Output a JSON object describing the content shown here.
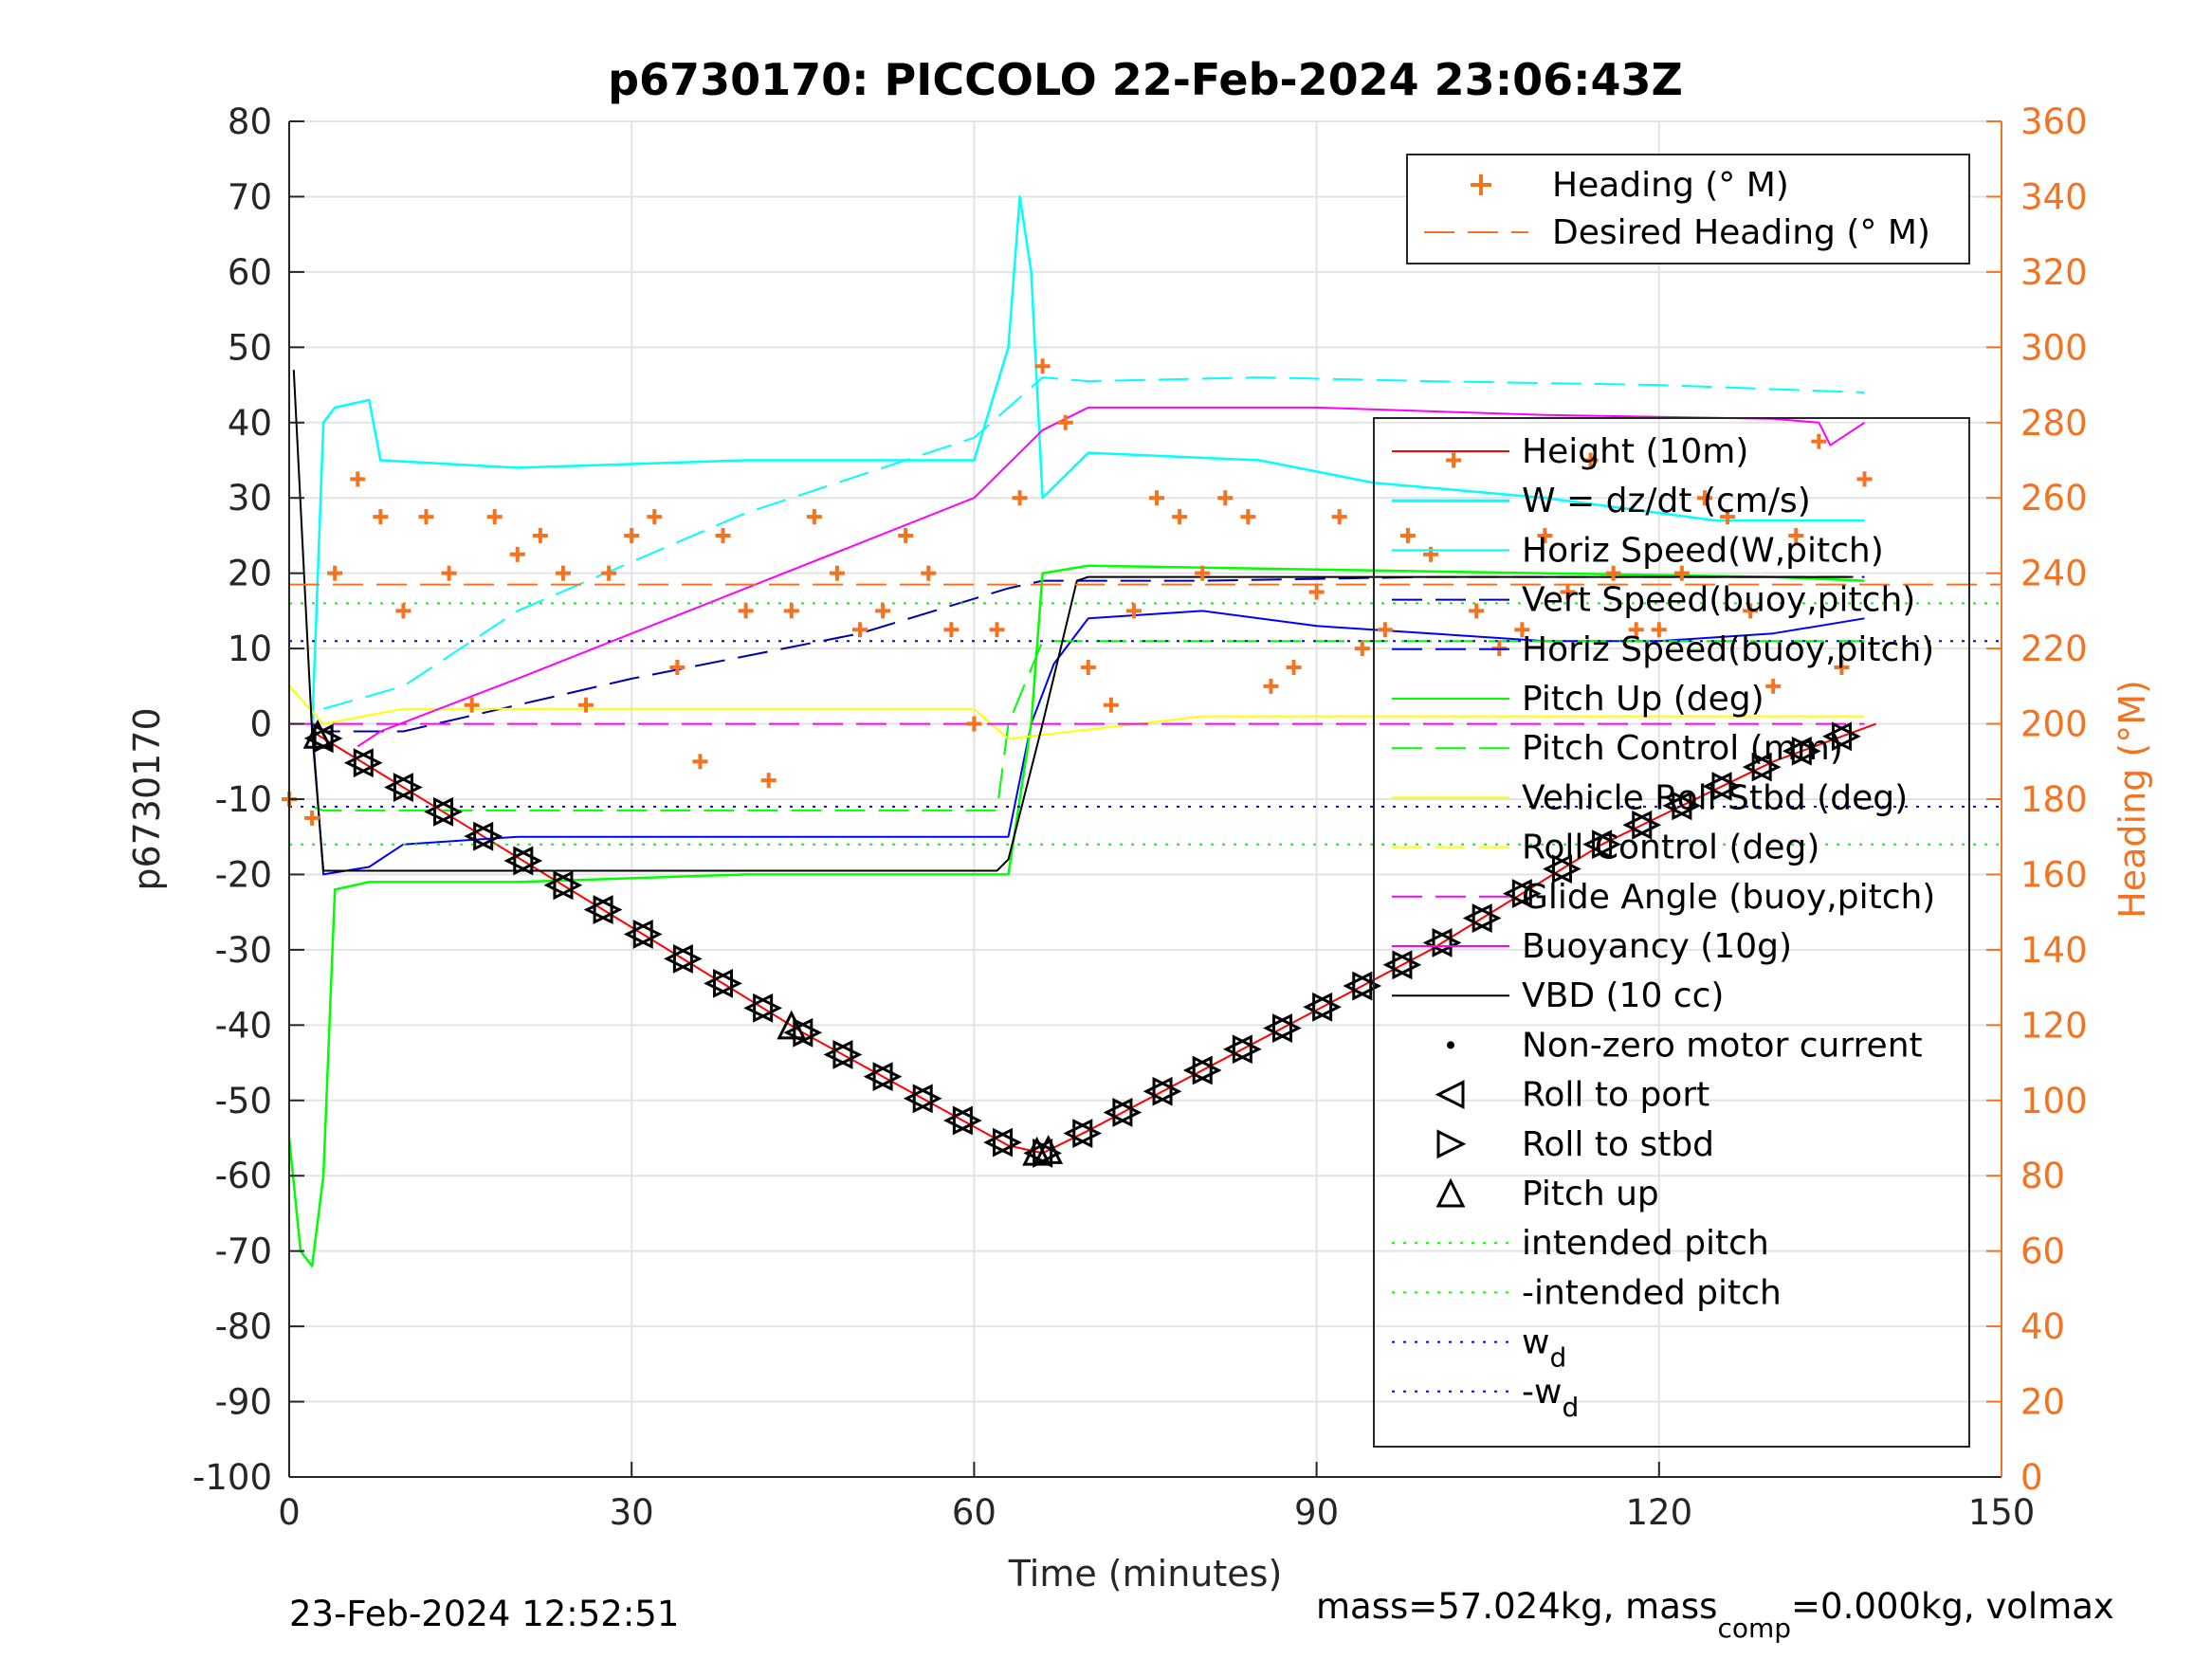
{
  "footer": {
    "timestamp": "23-Feb-2024 12:52:51",
    "mass_prefix": "mass=57.024kg, mass",
    "mass_sub": "comp",
    "mass_suffix": "=0.000kg, volmax"
  },
  "colors": {
    "heading": "#f47321",
    "height": "#ff0000",
    "w": "#00ffff",
    "horiz_speed": "#00ffff",
    "vert_speed_buoy": "#0000aa",
    "horiz_speed_buoy": "#0000ff",
    "pitch": "#00ff00",
    "roll": "#ffff00",
    "glide": "#ff00ff",
    "buoyancy": "#ff00ff",
    "vbd": "#000000"
  },
  "chart_data": {
    "type": "line",
    "title": "p6730170: PICCOLO 22-Feb-2024 23:06:43Z",
    "xlabel": "Time (minutes)",
    "ylabel": "p6730170",
    "ylabel_right": "Heading (°M)",
    "xlim": [
      0,
      150
    ],
    "ylim": [
      -100,
      80
    ],
    "ylim_right": [
      0,
      360
    ],
    "x_ticks": [
      "0",
      "30",
      "60",
      "90",
      "120",
      "150"
    ],
    "y_ticks": [
      "80",
      "70",
      "60",
      "50",
      "40",
      "30",
      "20",
      "10",
      "0",
      "-10",
      "-20",
      "-30",
      "-40",
      "-50",
      "-60",
      "-70",
      "-80",
      "-90",
      "-100"
    ],
    "y_ticks_right": [
      "360",
      "340",
      "320",
      "300",
      "280",
      "260",
      "240",
      "220",
      "200",
      "180",
      "160",
      "140",
      "120",
      "100",
      "80",
      "60",
      "40",
      "20",
      "0"
    ],
    "grid": true,
    "legend_top": [
      "Heading (° M)",
      "Desired Heading (° M)"
    ],
    "legend_main": [
      "Height (10m)",
      "W = dz/dt (cm/s)",
      "Horiz Speed(W,pitch)",
      "Vert Speed(buoy,pitch)",
      "Horiz Speed(buoy,pitch)",
      "Pitch Up (deg)",
      "Pitch Control (mm)",
      "Vehicle Roll Stbd (deg)",
      "Roll Control (deg)",
      "Glide Angle (buoy,pitch)",
      "Buoyancy (10g)",
      "VBD (10 cc)",
      "Non-zero motor current",
      "Roll to port",
      "Roll to stbd",
      "Pitch up",
      "intended pitch",
      "-intended pitch",
      "w",
      "-w"
    ],
    "legend_sub": "d",
    "series": [
      {
        "name": "Height (10m)",
        "x": [
          2,
          16,
          30,
          45,
          63,
          66,
          70,
          85,
          100,
          115,
          130,
          139
        ],
        "y": [
          -1,
          -14,
          -27,
          -41,
          -56,
          -57,
          -54,
          -42,
          -30,
          -16,
          -5,
          0
        ]
      },
      {
        "name": "W = dz/dt (cm/s)",
        "x": [
          2,
          3,
          4,
          7,
          8,
          20,
          40,
          60,
          63,
          64,
          65,
          66,
          70,
          85,
          95,
          110,
          125,
          138
        ],
        "y": [
          -1,
          40,
          42,
          43,
          35,
          34,
          35,
          35,
          50,
          70,
          60,
          30,
          36,
          35,
          32,
          30,
          27,
          27
        ]
      },
      {
        "name": "Horiz Speed(W,pitch)",
        "x": [
          3,
          10,
          20,
          40,
          60,
          66,
          70,
          85,
          100,
          120,
          138
        ],
        "y": [
          2,
          5,
          15,
          28,
          38,
          46,
          45.5,
          46,
          45.5,
          45,
          44
        ]
      },
      {
        "name": "Vert Speed(buoy,pitch)",
        "x": [
          2,
          3,
          10,
          30,
          50,
          63,
          66,
          80,
          100,
          120,
          138
        ],
        "y": [
          0,
          -1,
          -1,
          6,
          12,
          18,
          19,
          19,
          19.5,
          19.5,
          19.5
        ]
      },
      {
        "name": "Horiz Speed(buoy,pitch)",
        "x": [
          2,
          3,
          7,
          10,
          20,
          40,
          60,
          63,
          65,
          67,
          70,
          80,
          90,
          100,
          110,
          120,
          130,
          138
        ],
        "y": [
          0,
          -20,
          -19,
          -16,
          -15,
          -15,
          -15,
          -15,
          0,
          8,
          14,
          15,
          13,
          12,
          11,
          11,
          12,
          14
        ]
      },
      {
        "name": "Pitch Up (deg)",
        "x": [
          0,
          1,
          2,
          3,
          4,
          7,
          20,
          40,
          60,
          63,
          65,
          66,
          70,
          90,
          110,
          130,
          138
        ],
        "y": [
          -55,
          -70,
          -72,
          -60,
          -22,
          -21,
          -21,
          -20,
          -20,
          -20,
          0,
          20,
          21,
          20.5,
          20,
          19.5,
          19
        ]
      },
      {
        "name": "Pitch Control (mm)",
        "x": [
          2,
          3,
          62,
          63,
          66,
          138
        ],
        "y": [
          -11,
          -11.5,
          -11.5,
          0,
          11,
          11
        ]
      },
      {
        "name": "Vehicle Roll Stbd (deg)",
        "x": [
          0,
          3,
          10,
          20,
          40,
          60,
          63,
          80,
          100,
          120,
          138
        ],
        "y": [
          5,
          0,
          2,
          2,
          2,
          2,
          -2,
          1,
          1,
          1,
          1
        ]
      },
      {
        "name": "Glide Angle (buoy,pitch)",
        "x": [
          0,
          138
        ],
        "y": [
          0,
          0
        ]
      },
      {
        "name": "Buoyancy (10g)",
        "x": [
          6,
          8,
          20,
          40,
          60,
          66,
          70,
          90,
          110,
          130,
          134,
          135,
          138
        ],
        "y": [
          -3,
          -1,
          6,
          18,
          30,
          39,
          42,
          42,
          41,
          40.5,
          40,
          37,
          40
        ]
      },
      {
        "name": "VBD (10 cc)",
        "x": [
          0.4,
          2,
          3,
          62,
          63,
          66,
          69,
          70,
          137
        ],
        "y": [
          47,
          -1,
          -19.5,
          -19.5,
          -18,
          0,
          19,
          19.5,
          19.5
        ]
      },
      {
        "name": "intended pitch",
        "x": [
          0,
          150
        ],
        "y": [
          16,
          16
        ]
      },
      {
        "name": "-intended pitch",
        "x": [
          0,
          150
        ],
        "y": [
          -16,
          -16
        ]
      },
      {
        "name": "w",
        "x": [
          0,
          150
        ],
        "y": [
          11,
          11
        ]
      },
      {
        "name": "-w",
        "x": [
          0,
          150
        ],
        "y": [
          -11,
          -11
        ]
      }
    ],
    "heading_right_axis": {
      "x": [
        0,
        2,
        4,
        6,
        8,
        10,
        12,
        14,
        16,
        18,
        20,
        22,
        24,
        26,
        28,
        30,
        32,
        34,
        36,
        38,
        40,
        42,
        44,
        46,
        48,
        50,
        52,
        54,
        56,
        58,
        60,
        62,
        64,
        66,
        68,
        70,
        72,
        74,
        76,
        78,
        80,
        82,
        84,
        86,
        88,
        90,
        92,
        94,
        96,
        98,
        100,
        102,
        104,
        106,
        108,
        110,
        112,
        114,
        116,
        118,
        120,
        122,
        124,
        126,
        128,
        130,
        132,
        134,
        136,
        138
      ],
      "y": [
        180,
        175,
        240,
        265,
        255,
        230,
        255,
        240,
        205,
        255,
        245,
        250,
        240,
        205,
        240,
        250,
        255,
        215,
        190,
        250,
        230,
        185,
        230,
        255,
        240,
        225,
        230,
        250,
        240,
        225,
        200,
        225,
        260,
        295,
        280,
        215,
        205,
        230,
        260,
        255,
        240,
        260,
        255,
        210,
        215,
        235,
        255,
        220,
        225,
        250,
        245,
        270,
        230,
        220,
        225,
        250,
        235,
        270,
        240,
        225,
        225,
        240,
        260,
        255,
        230,
        210,
        250,
        275,
        215,
        265
      ],
      "desired": 237
    }
  }
}
